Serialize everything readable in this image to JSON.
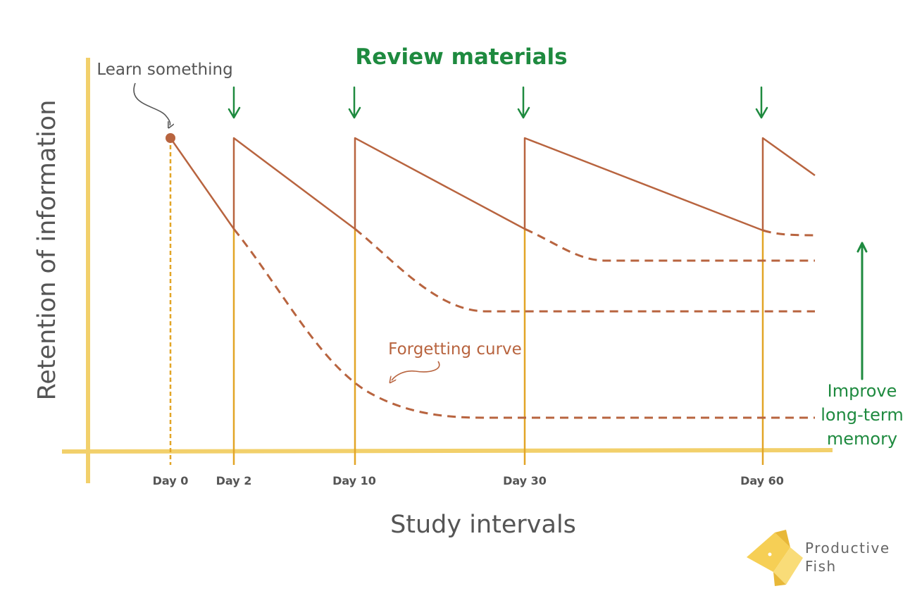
{
  "title": "Review materials",
  "ylabel": "Retention of information",
  "xlabel": "Study intervals",
  "annotations": {
    "learn": "Learn something",
    "forgetting": "Forgetting curve",
    "improve": [
      "Improve",
      "long-term",
      "memory"
    ]
  },
  "days": [
    "Day 0",
    "Day 2",
    "Day 10",
    "Day 30",
    "Day 60"
  ],
  "brand": [
    "Productive",
    "Fish"
  ],
  "colors": {
    "axis": "#f2d06b",
    "guide": "#e2a526",
    "curve": "#b8643f",
    "accent": "#1e8a3f",
    "text": "#555555",
    "logo": "#f6cf55"
  },
  "icons": [
    "review-arrow-icon",
    "improve-arrow-icon",
    "fish-logo-icon"
  ]
}
